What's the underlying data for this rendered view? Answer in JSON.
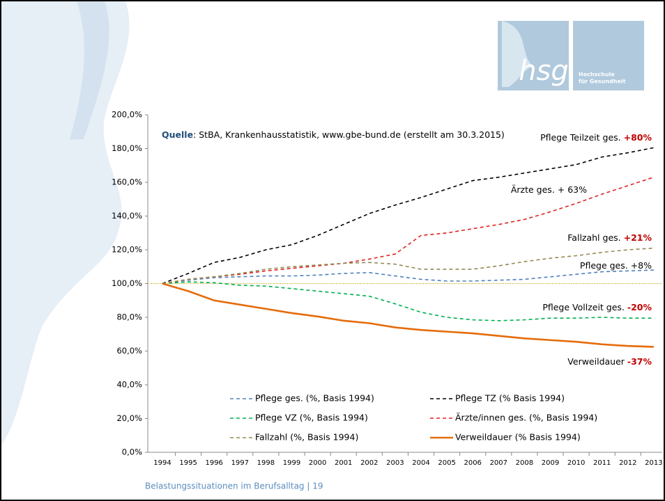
{
  "header": {
    "logo_text": "hsg",
    "logo_line1": "Hochschule",
    "logo_line2": "für Gesundheit"
  },
  "footer": "Belastungssituationen im Berufsalltag | 19",
  "chart_data": {
    "type": "line",
    "source_label": "Quelle",
    "source_text": ": StBA, Krankenhausstatistik, www.gbe-bund.de  (erstellt am 30.3.2015)",
    "categories": [
      "1994",
      "1995",
      "1996",
      "1997",
      "1998",
      "1999",
      "2000",
      "2001",
      "2002",
      "2003",
      "2004",
      "2005",
      "2006",
      "2007",
      "2008",
      "2009",
      "2010",
      "2011",
      "2012",
      "2013"
    ],
    "ylim": [
      0,
      200
    ],
    "yticks": [
      {
        "value": 0,
        "label": "0,0%"
      },
      {
        "value": 20,
        "label": "20,0%"
      },
      {
        "value": 40,
        "label": "40,0%"
      },
      {
        "value": 60,
        "label": "60,0%"
      },
      {
        "value": 80,
        "label": "80,0%"
      },
      {
        "value": 100,
        "label": "100,0%"
      },
      {
        "value": 120,
        "label": "120,0%"
      },
      {
        "value": 140,
        "label": "140,0%"
      },
      {
        "value": 160,
        "label": "160,0%"
      },
      {
        "value": 180,
        "label": "180,0%"
      },
      {
        "value": 200,
        "label": "200,0%"
      }
    ],
    "reference_line": 100,
    "series": [
      {
        "name": "Pflege ges. (%, Basis 1994)",
        "color": "#4f81bd",
        "dashed": true,
        "values": [
          100,
          102,
          103.5,
          104,
          104.5,
          104.5,
          105,
          106,
          106.5,
          104.5,
          102.5,
          101.5,
          101.5,
          102,
          102.5,
          104,
          105.5,
          107,
          107.5,
          108
        ]
      },
      {
        "name": "Pflege TZ (% Basis 1994)",
        "color": "#000000",
        "dashed": true,
        "values": [
          100,
          106,
          112.5,
          115.5,
          120,
          123,
          128.5,
          135,
          141.5,
          146.5,
          151,
          156,
          161,
          163,
          165.5,
          168,
          170.5,
          175,
          177.5,
          180.5
        ]
      },
      {
        "name": "Pflege VZ (%, Basis 1994)",
        "color": "#00b050",
        "dashed": true,
        "values": [
          100,
          101,
          100.5,
          99,
          98.5,
          97,
          95.5,
          94,
          92.5,
          88,
          83,
          80,
          78.5,
          78,
          78.5,
          79.5,
          79.5,
          80,
          79.5,
          79.5
        ]
      },
      {
        "name": "Ärzte/innen ges. (%, Basis 1994)",
        "color": "#e02020",
        "dashed": true,
        "values": [
          100,
          102.5,
          104,
          105.5,
          107.5,
          109,
          110.5,
          112,
          114.5,
          117.5,
          128.5,
          130,
          132.5,
          135,
          138,
          142.5,
          147.5,
          153,
          158,
          163
        ]
      },
      {
        "name": "Fallzahl (%, Basis 1994)",
        "color": "#948a54",
        "dashed": true,
        "values": [
          100,
          102.5,
          104,
          106,
          108.5,
          110,
          111,
          112,
          112.5,
          111.5,
          108.5,
          108.5,
          108.5,
          110.5,
          113,
          115,
          116.5,
          118.5,
          120,
          121
        ]
      },
      {
        "name": "Verweildauer (% Basis 1994)",
        "color": "#e46c0a",
        "dashed": false,
        "values": [
          100,
          95.5,
          90,
          87.5,
          85,
          82.5,
          80.5,
          78,
          76.5,
          74,
          72.5,
          71.5,
          70.5,
          69,
          67.5,
          66.5,
          65.5,
          64,
          63,
          62.5
        ]
      }
    ],
    "annotations": [
      {
        "text": "Pflege Teilzeit ges. ",
        "highlight": "+80%"
      },
      {
        "text": "Ärzte ges. + 63%"
      },
      {
        "text": "Fallzahl ges. ",
        "highlight": "+21%"
      },
      {
        "text": "Pflege ges. +8%"
      },
      {
        "text": "Pflege Vollzeit ges. ",
        "highlight": "-20%"
      },
      {
        "text": "Verweildauer ",
        "highlight": "-37%"
      }
    ]
  }
}
